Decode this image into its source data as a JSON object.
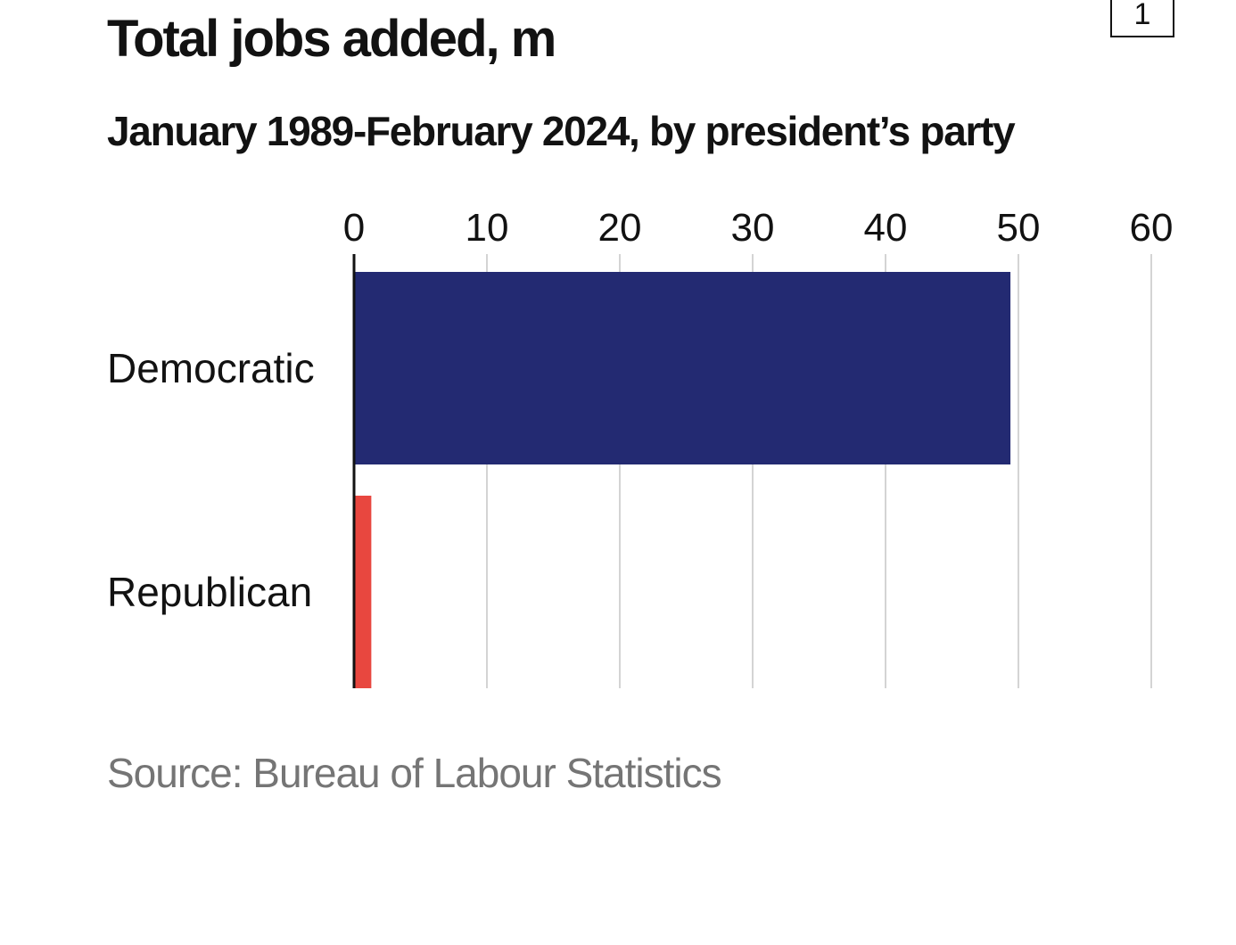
{
  "badge": "1",
  "chart_data": {
    "type": "bar",
    "orientation": "horizontal",
    "title": "Total jobs added, m",
    "subtitle": "January 1989-February 2024, by president’s party",
    "source": "Source: Bureau of Labour Statistics",
    "categories": [
      "Democratic",
      "Republican"
    ],
    "values": [
      49.4,
      1.3
    ],
    "colors": [
      "#232a72",
      "#e8473f"
    ],
    "xlim": [
      0,
      60
    ],
    "xticks": [
      0,
      10,
      20,
      30,
      40,
      50,
      60
    ],
    "xtick_labels": [
      "0",
      "10",
      "20",
      "30",
      "40",
      "50",
      "60"
    ],
    "axis_position": "top",
    "grid": true,
    "gridline_color": "#d4d4d4",
    "legend": "none"
  }
}
